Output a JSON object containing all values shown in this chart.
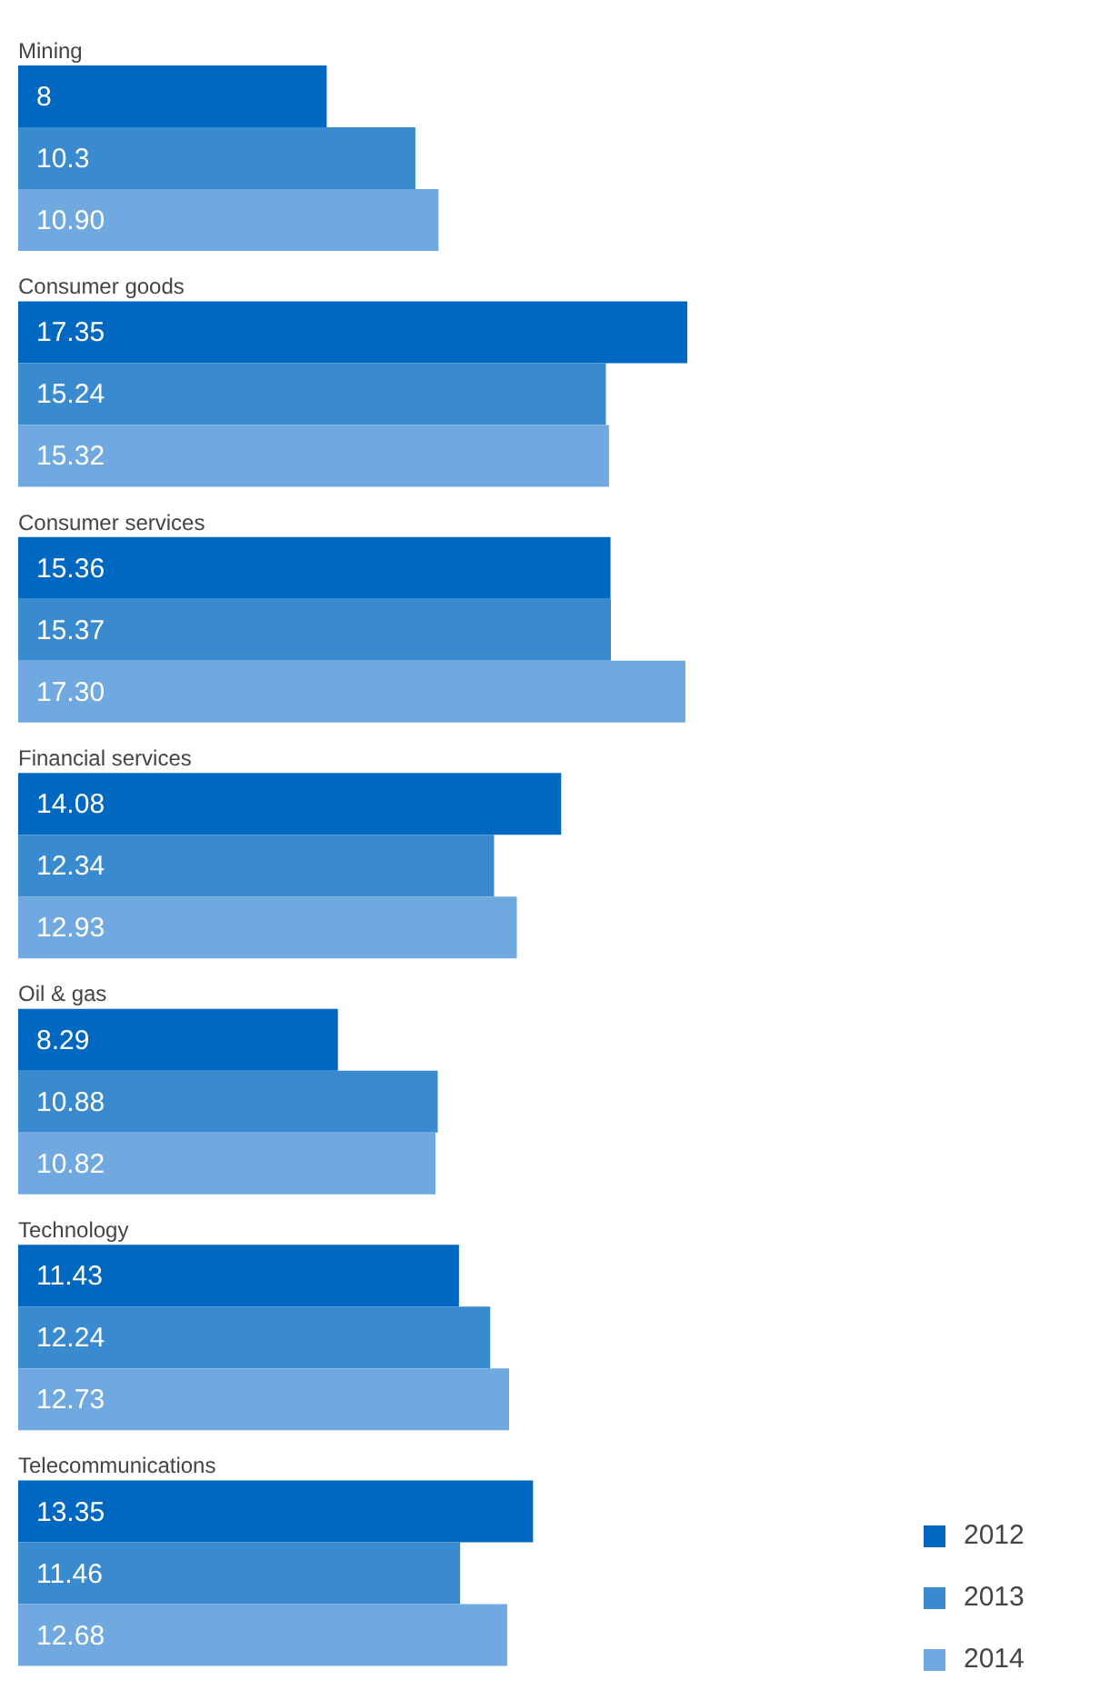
{
  "chart_data": {
    "type": "bar",
    "orientation": "horizontal",
    "categories": [
      "Mining",
      "Consumer goods",
      "Consumer services",
      "Financial services",
      "Oil & gas",
      "Technology",
      "Telecommunications"
    ],
    "series": [
      {
        "name": "2012",
        "color": "#0068c0",
        "values": [
          8,
          17.35,
          15.36,
          14.08,
          8.29,
          11.43,
          13.35
        ]
      },
      {
        "name": "2013",
        "color": "#3a8ad0",
        "values": [
          10.3,
          15.24,
          15.37,
          12.34,
          10.88,
          12.24,
          11.46
        ]
      },
      {
        "name": "2014",
        "color": "#6fa9df",
        "values": [
          10.9,
          15.32,
          17.3,
          12.93,
          10.82,
          12.73,
          12.68
        ],
        "value_labels": [
          "10.90",
          "15.32",
          "17.30",
          "12.93",
          "10.82",
          "12.73",
          "12.68"
        ]
      }
    ],
    "data_labels": true,
    "legend": "bottom right",
    "grid": false
  }
}
